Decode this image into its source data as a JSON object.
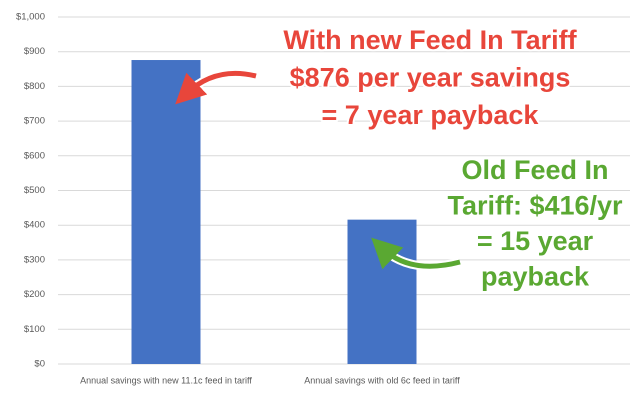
{
  "chart_data": {
    "type": "bar",
    "categories": [
      "Annual savings with new 11.1c feed in tariff",
      "Annual savings with old 6c feed in tariff"
    ],
    "values": [
      876,
      416
    ],
    "color": "#4472c4",
    "ylim": [
      0,
      1000
    ],
    "yticks": [
      {
        "value": 0,
        "label": "$0"
      },
      {
        "value": 100,
        "label": "$100"
      },
      {
        "value": 200,
        "label": "$200"
      },
      {
        "value": 300,
        "label": "$300"
      },
      {
        "value": 400,
        "label": "$400"
      },
      {
        "value": 500,
        "label": "$500"
      },
      {
        "value": 600,
        "label": "$600"
      },
      {
        "value": 700,
        "label": "$700"
      },
      {
        "value": 800,
        "label": "$800"
      },
      {
        "value": 900,
        "label": "$900"
      },
      {
        "value": 1000,
        "label": "$1,000"
      }
    ],
    "grid": true,
    "annotations": [
      {
        "lines": [
          "With new Feed In Tariff",
          "$876 per year savings",
          "= 7 year payback"
        ],
        "color": "#e8463b"
      },
      {
        "lines": [
          "Old Feed In",
          "Tariff: $416/yr",
          "= 15 year",
          "payback"
        ],
        "color": "#5aa832"
      }
    ]
  }
}
